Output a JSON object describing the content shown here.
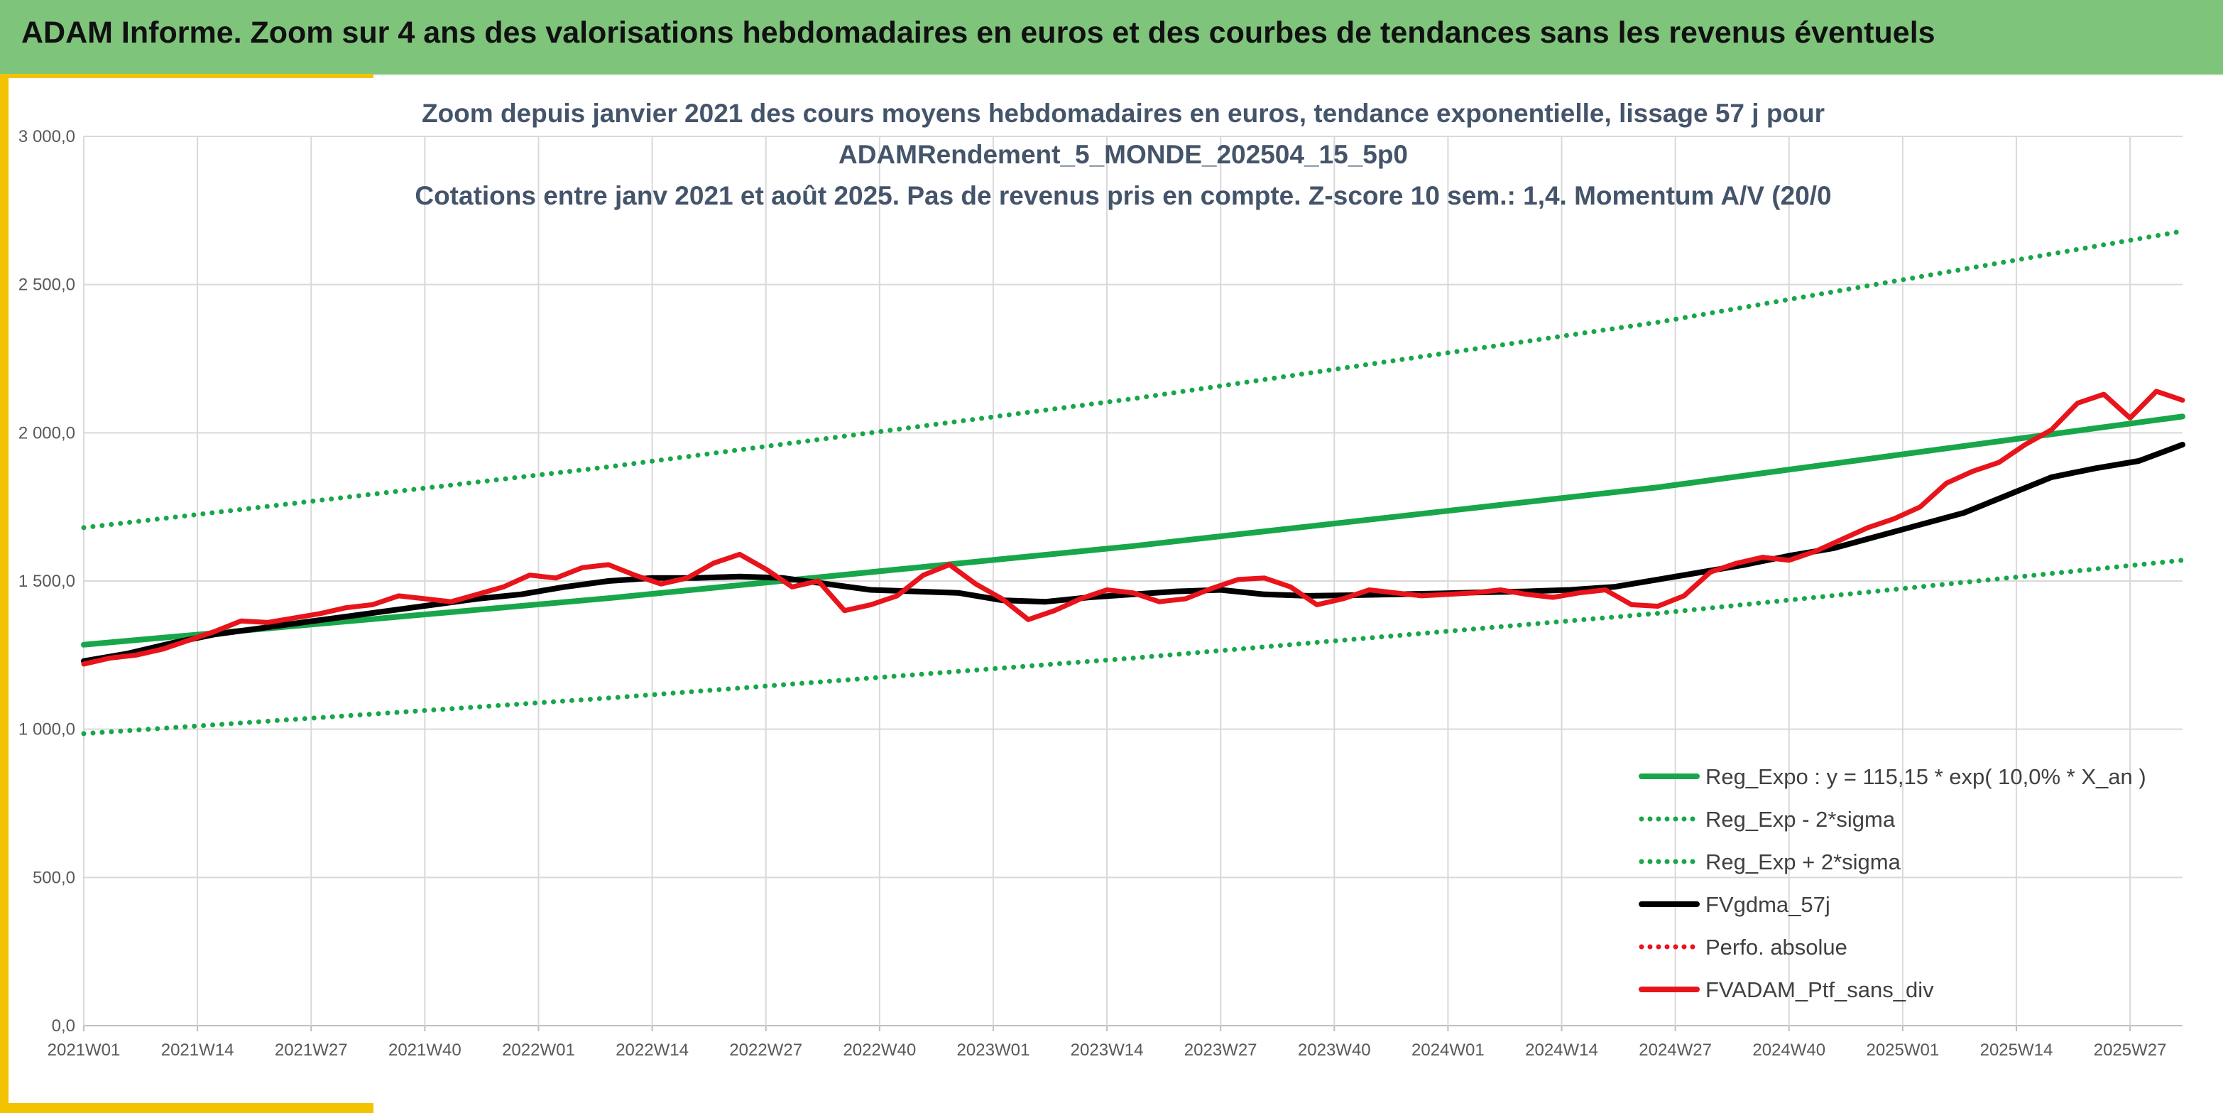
{
  "banner": {
    "title": "ADAM Informe. Zoom sur 4 ans des valorisations hebdomadaires en euros et des courbes de tendances sans les revenus éventuels"
  },
  "colors": {
    "banner_green": "#7fc47b",
    "accent_yellow": "#f3c200",
    "trend_green": "#18a64a",
    "sigma_green": "#18a64a",
    "moving_avg_black": "#000000",
    "price_red": "#e8141b",
    "title_slate": "#44546a"
  },
  "chart_data": {
    "type": "line",
    "title_lines": [
      "Zoom depuis janvier 2021 des cours moyens hebdomadaires en euros, tendance exponentielle, lissage 57 j pour",
      "ADAMRendement_5_MONDE_202504_15_5p0",
      "Cotations entre janv 2021 et août 2025. Pas de revenus pris en compte. Z-score 10 sem.: 1,4. Momentum A/V (20/0"
    ],
    "x_tick_labels": [
      "2021W01",
      "2021W14",
      "2021W27",
      "2021W40",
      "2022W01",
      "2022W14",
      "2022W27",
      "2022W40",
      "2023W01",
      "2023W14",
      "2023W27",
      "2023W40",
      "2024W01",
      "2024W14",
      "2024W27",
      "2024W40",
      "2025W01",
      "2025W14",
      "2025W27"
    ],
    "x_range_weeks": [
      0,
      240
    ],
    "y_tick_labels": [
      "0,0",
      "500,0",
      "1 000,0",
      "1 500,0",
      "2 000,0",
      "2 500,0",
      "3 000,0"
    ],
    "ylim": [
      0,
      3000
    ],
    "grid": true,
    "legend_position": "bottom-right",
    "series": [
      {
        "name": "Reg_Expo : y = 115,15 * exp( 10,0% *  X_an )",
        "style": "solid",
        "color_key": "trend_green",
        "x": [
          0,
          60,
          120,
          180,
          240
        ],
        "values": [
          1285,
          1442,
          1618,
          1816,
          2055
        ]
      },
      {
        "name": "Reg_Exp - 2*sigma",
        "style": "dotted",
        "color_key": "sigma_green",
        "x": [
          0,
          60,
          120,
          180,
          240
        ],
        "values": [
          985,
          1105,
          1240,
          1391,
          1570
        ]
      },
      {
        "name": "Reg_Exp + 2*sigma",
        "style": "dotted",
        "color_key": "sigma_green",
        "x": [
          0,
          60,
          120,
          180,
          240
        ],
        "values": [
          1680,
          1885,
          2115,
          2373,
          2680
        ]
      },
      {
        "name": "FVgdma_57j",
        "style": "solid",
        "color_key": "moving_avg_black",
        "x": [
          0,
          5,
          10,
          15,
          20,
          25,
          30,
          35,
          40,
          45,
          50,
          55,
          60,
          65,
          70,
          75,
          80,
          85,
          90,
          95,
          100,
          105,
          110,
          115,
          120,
          125,
          130,
          135,
          140,
          145,
          150,
          155,
          160,
          165,
          170,
          175,
          180,
          185,
          190,
          195,
          200,
          205,
          210,
          215,
          220,
          225,
          230,
          235,
          240
        ],
        "values": [
          1230,
          1255,
          1290,
          1320,
          1340,
          1360,
          1380,
          1400,
          1420,
          1440,
          1455,
          1480,
          1500,
          1510,
          1510,
          1515,
          1510,
          1490,
          1470,
          1465,
          1460,
          1435,
          1430,
          1445,
          1455,
          1465,
          1470,
          1455,
          1450,
          1452,
          1455,
          1458,
          1462,
          1465,
          1470,
          1480,
          1505,
          1530,
          1555,
          1585,
          1610,
          1650,
          1690,
          1730,
          1790,
          1850,
          1880,
          1905,
          1960
        ]
      },
      {
        "name": "Perfo. absolue",
        "style": "dotted",
        "color_key": "price_red",
        "x": [],
        "values": []
      },
      {
        "name": "FVADAM_Ptf_sans_div",
        "style": "solid",
        "color_key": "price_red",
        "x": [
          0,
          3,
          6,
          9,
          12,
          15,
          18,
          21,
          24,
          27,
          30,
          33,
          36,
          39,
          42,
          45,
          48,
          51,
          54,
          57,
          60,
          63,
          66,
          69,
          72,
          75,
          78,
          81,
          84,
          87,
          90,
          93,
          96,
          99,
          102,
          105,
          108,
          111,
          114,
          117,
          120,
          123,
          126,
          129,
          132,
          135,
          138,
          141,
          144,
          147,
          150,
          153,
          156,
          159,
          162,
          165,
          168,
          171,
          174,
          177,
          180,
          183,
          186,
          189,
          192,
          195,
          198,
          201,
          204,
          207,
          210,
          213,
          216,
          219,
          222,
          225,
          228,
          231,
          234,
          237,
          240
        ],
        "values": [
          1220,
          1240,
          1250,
          1270,
          1300,
          1330,
          1365,
          1360,
          1375,
          1390,
          1410,
          1420,
          1450,
          1440,
          1430,
          1455,
          1480,
          1520,
          1510,
          1545,
          1555,
          1520,
          1490,
          1510,
          1560,
          1590,
          1540,
          1480,
          1500,
          1400,
          1420,
          1450,
          1520,
          1555,
          1490,
          1440,
          1370,
          1400,
          1440,
          1470,
          1460,
          1430,
          1440,
          1475,
          1505,
          1510,
          1480,
          1420,
          1440,
          1470,
          1460,
          1450,
          1455,
          1460,
          1470,
          1455,
          1445,
          1460,
          1470,
          1420,
          1415,
          1450,
          1530,
          1560,
          1580,
          1570,
          1600,
          1640,
          1680,
          1710,
          1750,
          1830,
          1870,
          1900,
          1960,
          2010,
          2100,
          2130,
          2050,
          2140,
          2110
        ]
      }
    ]
  }
}
